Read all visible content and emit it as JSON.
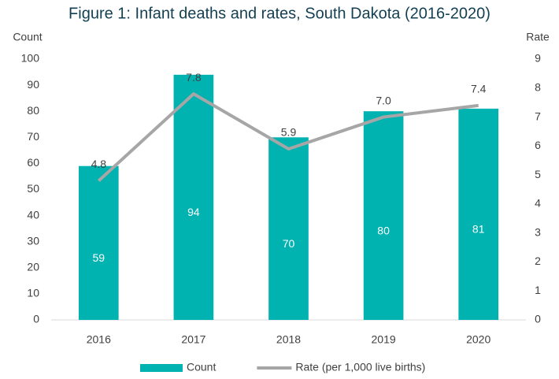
{
  "chart_data": {
    "type": "bar",
    "title": "Figure 1: Infant deaths and rates, South Dakota (2016-2020)",
    "y_label": "Count",
    "y2_label": "Rate",
    "categories": [
      "2016",
      "2017",
      "2018",
      "2019",
      "2020"
    ],
    "series": [
      {
        "name": "Count",
        "type": "bar",
        "color": "#00b2b0",
        "values": [
          59,
          94,
          70,
          80,
          81
        ]
      },
      {
        "name": "Rate (per 1,000 live births)",
        "type": "line",
        "axis": "y2",
        "color": "#a6a6a6",
        "values": [
          4.8,
          7.8,
          5.9,
          7.0,
          7.4
        ],
        "value_labels": [
          "4.8",
          "7.8",
          "5.9",
          "7.0",
          "7.4"
        ]
      }
    ],
    "ylim": [
      0,
      100
    ],
    "yticks": [
      0,
      10,
      20,
      30,
      40,
      50,
      60,
      70,
      80,
      90,
      100
    ],
    "y2lim": [
      0,
      9
    ],
    "y2ticks": [
      0,
      1,
      2,
      3,
      4,
      5,
      6,
      7,
      8,
      9
    ],
    "grid": false,
    "legend": "bottom"
  }
}
